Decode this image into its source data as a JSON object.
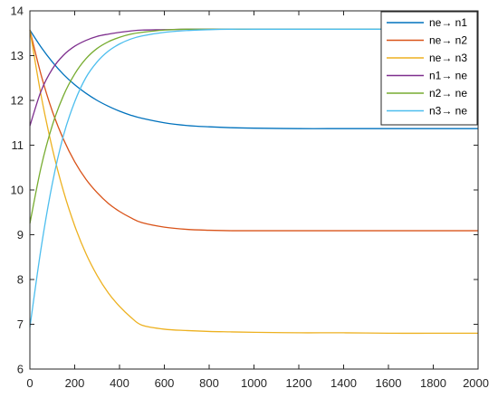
{
  "chart_data": {
    "type": "line",
    "title": "",
    "xlabel": "",
    "ylabel": "",
    "xlim": [
      0,
      2000
    ],
    "ylim": [
      6,
      14
    ],
    "x_ticks": [
      "0",
      "200",
      "400",
      "600",
      "800",
      "1000",
      "1200",
      "1400",
      "1600",
      "1800",
      "2000"
    ],
    "y_ticks": [
      "6",
      "7",
      "8",
      "9",
      "10",
      "11",
      "12",
      "13",
      "14"
    ],
    "grid": false,
    "legend_position": "top-right",
    "x": [
      0,
      50,
      100,
      150,
      200,
      250,
      300,
      350,
      400,
      450,
      500,
      600,
      700,
      800,
      900,
      1000,
      1200,
      1400,
      1600,
      1800,
      2000
    ],
    "series": [
      {
        "name": "ne→ n1",
        "color": "#0072BD",
        "values": [
          13.57,
          13.19,
          12.86,
          12.58,
          12.35,
          12.16,
          12.0,
          11.87,
          11.76,
          11.67,
          11.6,
          11.5,
          11.44,
          11.41,
          11.39,
          11.38,
          11.37,
          11.37,
          11.37,
          11.37,
          11.37
        ]
      },
      {
        "name": "ne→ n2",
        "color": "#D95319",
        "values": [
          13.57,
          12.57,
          11.76,
          11.13,
          10.63,
          10.24,
          9.94,
          9.7,
          9.52,
          9.38,
          9.27,
          9.17,
          9.12,
          9.1,
          9.09,
          9.09,
          9.09,
          9.09,
          9.09,
          9.09,
          9.09
        ]
      },
      {
        "name": "ne→ n3",
        "color": "#EDB120",
        "values": [
          13.57,
          12.11,
          10.93,
          9.97,
          9.2,
          8.58,
          8.09,
          7.7,
          7.4,
          7.16,
          6.98,
          6.89,
          6.86,
          6.84,
          6.83,
          6.82,
          6.81,
          6.81,
          6.8,
          6.8,
          6.8
        ]
      },
      {
        "name": "n1→ ne",
        "color": "#7E2F8E",
        "values": [
          11.43,
          12.21,
          12.7,
          13.01,
          13.21,
          13.34,
          13.43,
          13.48,
          13.52,
          13.55,
          13.57,
          13.58,
          13.59,
          13.59,
          13.59,
          13.59,
          13.59,
          13.59,
          13.59,
          13.59,
          13.59
        ]
      },
      {
        "name": "n2→ ne",
        "color": "#77AC30",
        "values": [
          9.25,
          10.51,
          11.44,
          12.11,
          12.59,
          12.93,
          13.16,
          13.31,
          13.41,
          13.48,
          13.52,
          13.57,
          13.59,
          13.59,
          13.59,
          13.59,
          13.59,
          13.59,
          13.59,
          13.59,
          13.59
        ]
      },
      {
        "name": "n3→ ne",
        "color": "#4DBEEE",
        "values": [
          6.93,
          8.7,
          10.14,
          11.22,
          11.97,
          12.51,
          12.86,
          13.1,
          13.26,
          13.37,
          13.44,
          13.52,
          13.56,
          13.58,
          13.59,
          13.59,
          13.59,
          13.59,
          13.59,
          13.59,
          13.59
        ]
      }
    ]
  }
}
